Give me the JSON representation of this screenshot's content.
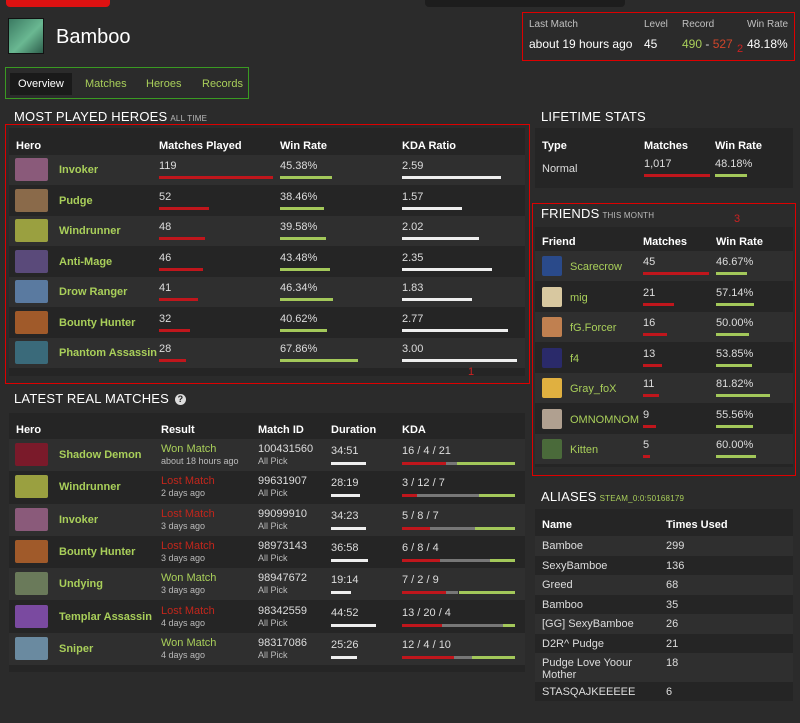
{
  "player": {
    "name": "Bamboo"
  },
  "summary": {
    "last_match_label": "Last Match",
    "last_match": "about 19 hours ago",
    "level_label": "Level",
    "level": "45",
    "record_label": "Record",
    "wins": "490",
    "sep": " - ",
    "losses": "527",
    "winrate_label": "Win Rate",
    "winrate": "48.18%"
  },
  "annotations": {
    "a1": "1",
    "a2": "2",
    "a3": "3"
  },
  "tabs": [
    "Overview",
    "Matches",
    "Heroes",
    "Records"
  ],
  "most_played": {
    "title": "MOST PLAYED HEROES",
    "subtitle": "ALL TIME",
    "headers": [
      "Hero",
      "Matches Played",
      "Win Rate",
      "KDA Ratio"
    ],
    "rows": [
      {
        "hero": "Invoker",
        "matches": "119",
        "mfrac": 1.0,
        "winrate": "45.38%",
        "wfrac": 0.4538,
        "kda": "2.59",
        "kfrac": 0.86
      },
      {
        "hero": "Pudge",
        "matches": "52",
        "mfrac": 0.44,
        "winrate": "38.46%",
        "wfrac": 0.3846,
        "kda": "1.57",
        "kfrac": 0.52
      },
      {
        "hero": "Windrunner",
        "matches": "48",
        "mfrac": 0.4,
        "winrate": "39.58%",
        "wfrac": 0.3958,
        "kda": "2.02",
        "kfrac": 0.67
      },
      {
        "hero": "Anti-Mage",
        "matches": "46",
        "mfrac": 0.39,
        "winrate": "43.48%",
        "wfrac": 0.4348,
        "kda": "2.35",
        "kfrac": 0.78
      },
      {
        "hero": "Drow Ranger",
        "matches": "41",
        "mfrac": 0.34,
        "winrate": "46.34%",
        "wfrac": 0.4634,
        "kda": "1.83",
        "kfrac": 0.61
      },
      {
        "hero": "Bounty Hunter",
        "matches": "32",
        "mfrac": 0.27,
        "winrate": "40.62%",
        "wfrac": 0.4062,
        "kda": "2.77",
        "kfrac": 0.92
      },
      {
        "hero": "Phantom Assassin",
        "matches": "28",
        "mfrac": 0.24,
        "winrate": "67.86%",
        "wfrac": 0.6786,
        "kda": "3.00",
        "kfrac": 1.0
      }
    ]
  },
  "latest": {
    "title": "LATEST REAL MATCHES",
    "help": "?",
    "headers": [
      "Hero",
      "Result",
      "Match ID",
      "Duration",
      "KDA"
    ],
    "rows": [
      {
        "hero": "Shadow Demon",
        "result": "Won Match",
        "won": true,
        "when": "about 18 hours ago",
        "id": "100431560",
        "mode": "All Pick",
        "duration": "34:51",
        "dfrac": 0.7,
        "kda": "16 / 4 / 21",
        "k": 16,
        "d": 4,
        "a": 21
      },
      {
        "hero": "Windrunner",
        "result": "Lost Match",
        "won": false,
        "when": "2 days ago",
        "id": "99631907",
        "mode": "All Pick",
        "duration": "28:19",
        "dfrac": 0.57,
        "kda": "3 / 12 / 7",
        "k": 3,
        "d": 12,
        "a": 7
      },
      {
        "hero": "Invoker",
        "result": "Lost Match",
        "won": false,
        "when": "3 days ago",
        "id": "99099910",
        "mode": "All Pick",
        "duration": "34:23",
        "dfrac": 0.69,
        "kda": "5 / 8 / 7",
        "k": 5,
        "d": 8,
        "a": 7
      },
      {
        "hero": "Bounty Hunter",
        "result": "Lost Match",
        "won": false,
        "when": "3 days ago",
        "id": "98973143",
        "mode": "All Pick",
        "duration": "36:58",
        "dfrac": 0.74,
        "kda": "6 / 8 / 4",
        "k": 6,
        "d": 8,
        "a": 4
      },
      {
        "hero": "Undying",
        "result": "Won Match",
        "won": true,
        "when": "3 days ago",
        "id": "98947672",
        "mode": "All Pick",
        "duration": "19:14",
        "dfrac": 0.39,
        "kda": "7 / 2 / 9",
        "k": 7,
        "d": 2,
        "a": 9
      },
      {
        "hero": "Templar Assassin",
        "result": "Lost Match",
        "won": false,
        "when": "4 days ago",
        "id": "98342559",
        "mode": "All Pick",
        "duration": "44:52",
        "dfrac": 0.9,
        "kda": "13 / 20 / 4",
        "k": 13,
        "d": 20,
        "a": 4
      },
      {
        "hero": "Sniper",
        "result": "Won Match",
        "won": true,
        "when": "4 days ago",
        "id": "98317086",
        "mode": "All Pick",
        "duration": "25:26",
        "dfrac": 0.51,
        "kda": "12 / 4 / 10",
        "k": 12,
        "d": 4,
        "a": 10
      }
    ]
  },
  "lifetime": {
    "title": "LIFETIME STATS",
    "headers": [
      "Type",
      "Matches",
      "Win Rate"
    ],
    "rows": [
      {
        "type": "Normal",
        "matches": "1,017",
        "winrate": "48.18%",
        "wfrac": 0.4818
      }
    ]
  },
  "friends": {
    "title": "FRIENDS",
    "subtitle": "THIS MONTH",
    "headers": [
      "Friend",
      "Matches",
      "Win Rate"
    ],
    "rows": [
      {
        "name": "Scarecrow",
        "matches": "45",
        "mfrac": 1.0,
        "winrate": "46.67%",
        "wfrac": 0.4667
      },
      {
        "name": "mig",
        "matches": "21",
        "mfrac": 0.47,
        "winrate": "57.14%",
        "wfrac": 0.5714
      },
      {
        "name": "fG.Forcer",
        "matches": "16",
        "mfrac": 0.36,
        "winrate": "50.00%",
        "wfrac": 0.5
      },
      {
        "name": "f4",
        "matches": "13",
        "mfrac": 0.29,
        "winrate": "53.85%",
        "wfrac": 0.5385
      },
      {
        "name": "Gray_foX",
        "matches": "11",
        "mfrac": 0.24,
        "winrate": "81.82%",
        "wfrac": 0.8182
      },
      {
        "name": "OMNOMNOM",
        "matches": "9",
        "mfrac": 0.2,
        "winrate": "55.56%",
        "wfrac": 0.5556
      },
      {
        "name": "Kitten",
        "matches": "5",
        "mfrac": 0.11,
        "winrate": "60.00%",
        "wfrac": 0.6
      }
    ]
  },
  "aliases": {
    "title": "ALIASES",
    "subtitle": "STEAM_0:0:50168179",
    "headers": [
      "Name",
      "Times Used"
    ],
    "rows": [
      {
        "name": "Bamboe",
        "times": "299"
      },
      {
        "name": "SexyBamboe",
        "times": "136"
      },
      {
        "name": "Greed",
        "times": "68"
      },
      {
        "name": "Bamboo",
        "times": "35"
      },
      {
        "name": "[GG] SexyBamboe",
        "times": "26"
      },
      {
        "name": "D2R^ Pudge",
        "times": "21"
      },
      {
        "name": "Pudge Love Yoour Mother",
        "times": "18"
      },
      {
        "name": "STASQAJKEEEEE",
        "times": "6"
      }
    ]
  }
}
